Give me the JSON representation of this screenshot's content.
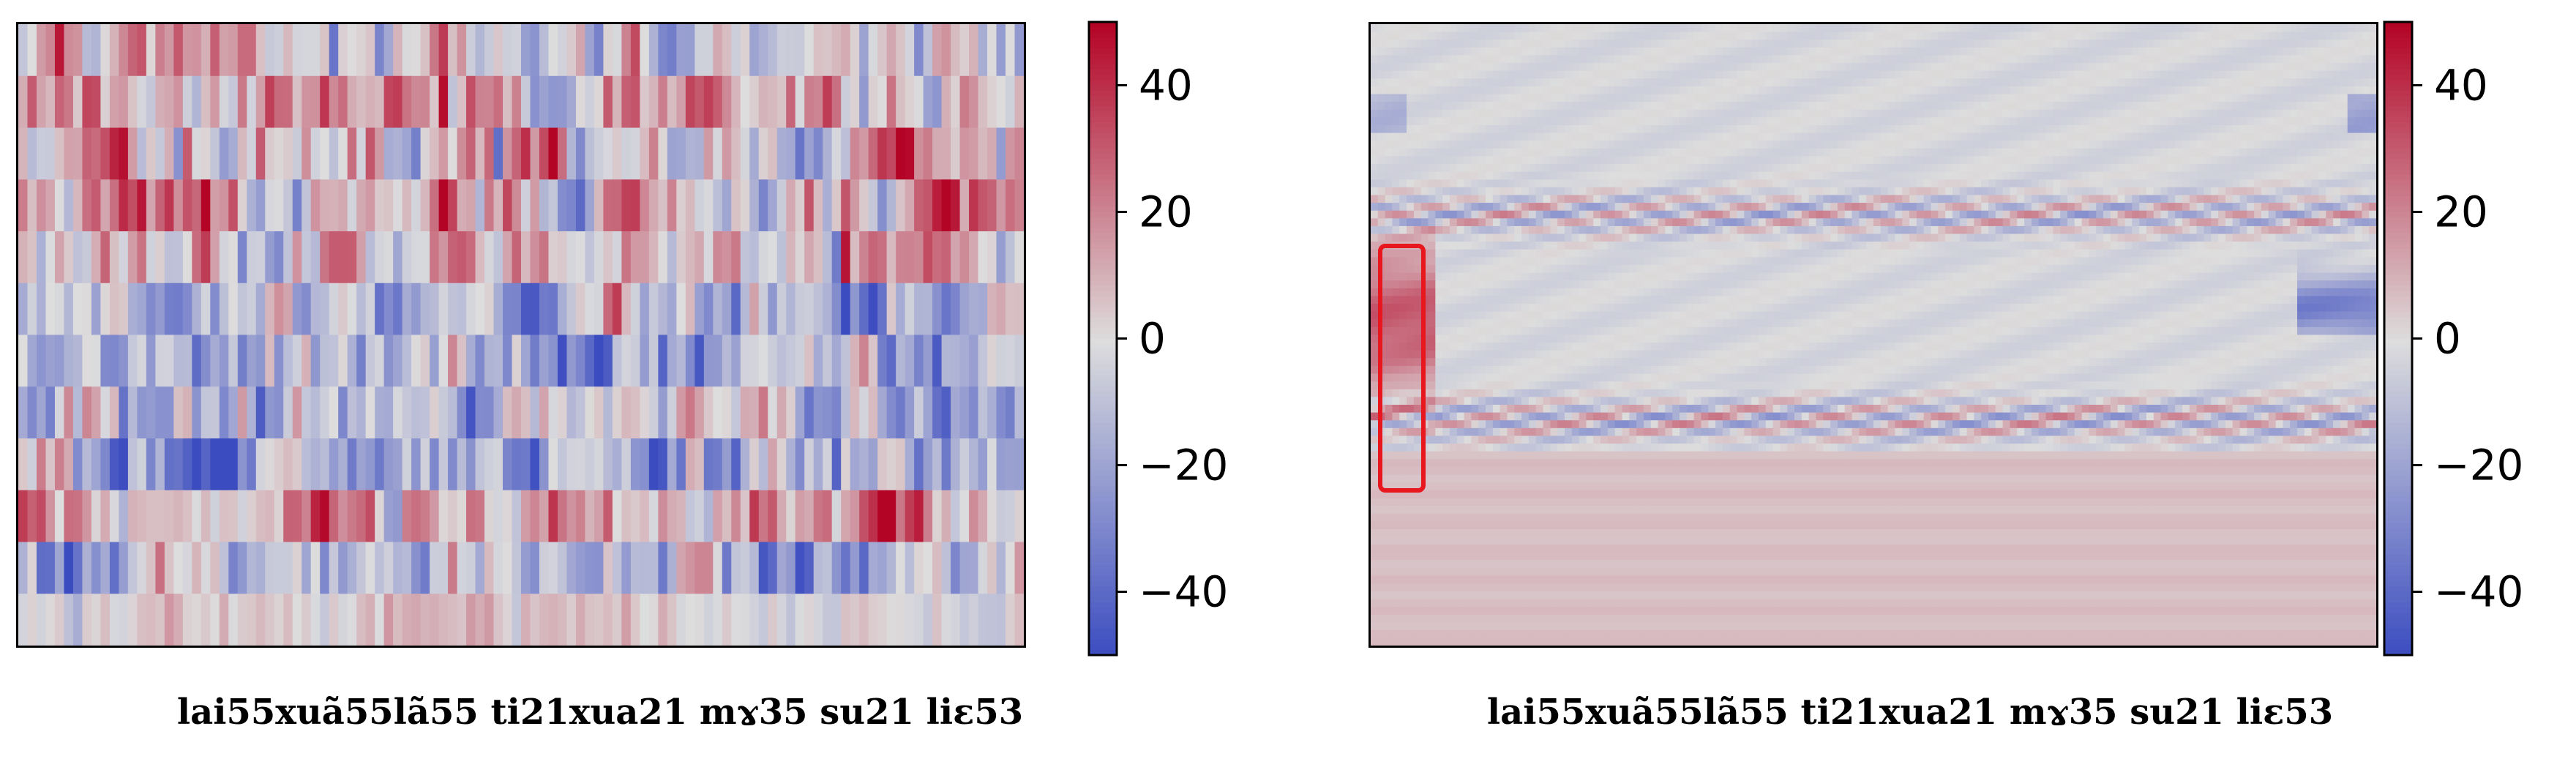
{
  "chart_data": [
    {
      "type": "heatmap",
      "title": "",
      "xlabel": "",
      "ylabel": "",
      "caption": "lai55xuã55lã55 ti21xua21 mɤ35 su21 liɛ53",
      "n_rows": 12,
      "n_cols": 110,
      "row_pattern": [
        "mixed",
        "positive",
        "mixed",
        "positive",
        "positive",
        "negative",
        "negative",
        "negative",
        "negative",
        "positive",
        "negative",
        "positive"
      ],
      "colorbar": {
        "vmin": -50,
        "vmax": 50,
        "ticks": [
          40,
          20,
          0,
          -20,
          -40
        ]
      },
      "colormap": "coolwarm",
      "colors": {
        "low": "#3b4cc0",
        "mid": "#dddddd",
        "high": "#b40426"
      }
    },
    {
      "type": "heatmap",
      "title": "",
      "xlabel": "",
      "ylabel": "",
      "caption": "lai55xuã55lã55 ti21xua21 mɤ35 su21 liɛ53",
      "n_rows": 80,
      "n_cols": 140,
      "structure": "upper rows near zero with alternating red/blue ripple bands; lower 40% uniformly slightly positive",
      "highlight": {
        "color": "#e8171d",
        "note": "strong positive region at the left edge"
      },
      "colorbar": {
        "vmin": -50,
        "vmax": 50,
        "ticks": [
          40,
          20,
          0,
          -20,
          -40
        ]
      },
      "colormap": "coolwarm",
      "colors": {
        "low": "#3b4cc0",
        "mid": "#dddddd",
        "high": "#b40426"
      }
    }
  ]
}
